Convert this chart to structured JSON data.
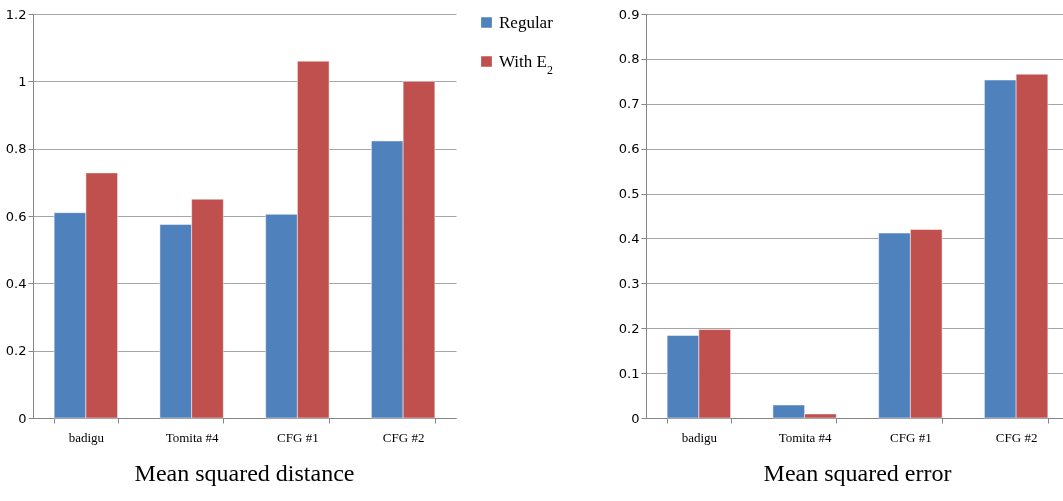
{
  "chart_data": [
    {
      "type": "bar",
      "title": "Mean squared distance",
      "categories": [
        "badigu",
        "Tomita #4",
        "CFG #1",
        "CFG #2"
      ],
      "series": [
        {
          "name": "Regular",
          "color": "#4f81bd",
          "values": [
            0.61,
            0.575,
            0.605,
            0.823
          ]
        },
        {
          "name": "With E$_{2}$",
          "color": "#c0504d",
          "values": [
            0.728,
            0.65,
            1.06,
            1.0
          ]
        }
      ],
      "ylim": [
        0,
        1.2
      ],
      "yticks": [
        0,
        0.2,
        0.4,
        0.6,
        0.8,
        1,
        1.2
      ],
      "grid": "y",
      "legend": "right"
    },
    {
      "type": "bar",
      "title": "Mean squared error",
      "categories": [
        "badigu",
        "Tomita #4",
        "CFG #1",
        "CFG #2"
      ],
      "series": [
        {
          "color": "#4f81bd",
          "values": [
            0.184,
            0.029,
            0.412,
            0.753
          ]
        },
        {
          "color": "#c0504d",
          "values": [
            0.197,
            0.009,
            0.42,
            0.766
          ]
        }
      ],
      "ylim": [
        0,
        0.9
      ],
      "yticks": [
        0,
        0.1,
        0.2,
        0.3,
        0.4,
        0.5,
        0.6,
        0.7,
        0.8,
        0.9
      ],
      "grid": "y"
    }
  ]
}
